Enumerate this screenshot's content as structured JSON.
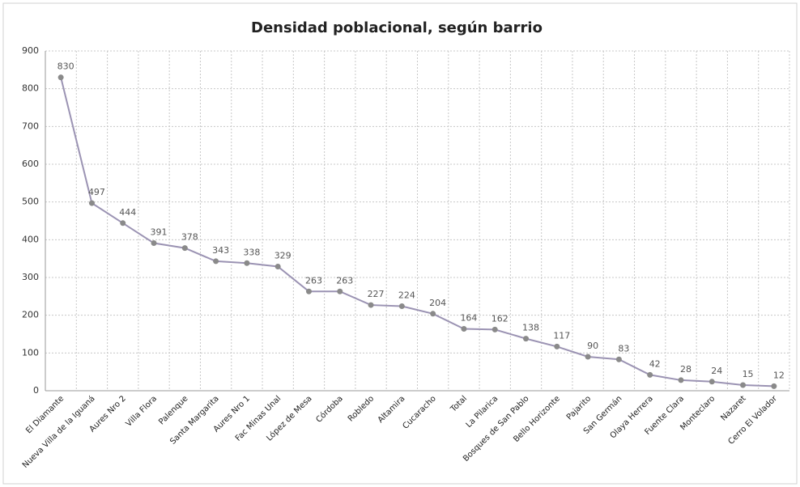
{
  "chart_data": {
    "type": "line",
    "title": "Densidad poblacional, según barrio",
    "categories": [
      "El Diamante",
      "Nueva Villa de la Iguaná",
      "Aures Nro 2",
      "Villa Flora",
      "Palenque",
      "Santa Margarita",
      "Aures Nro 1",
      "Fac Minas Unal",
      "López de Mesa",
      "Córdoba",
      "Robledo",
      "Altamira",
      "Cucaracho",
      "Total",
      "La Pilarica",
      "Bosques de San Pablo",
      "Bello Horizonte",
      "Pajarito",
      "San Germán",
      "Olaya Herrera",
      "Fuente Clara",
      "Monteclaro",
      "Nazaret",
      "Cerro El Volador"
    ],
    "values": [
      830,
      497,
      444,
      391,
      378,
      343,
      338,
      329,
      263,
      263,
      227,
      224,
      204,
      164,
      162,
      138,
      117,
      90,
      83,
      42,
      28,
      24,
      15,
      12
    ],
    "color": "#9b93b3",
    "marker_color": "#8a8a8a",
    "ylim": [
      0,
      900
    ],
    "yticks": [
      0,
      100,
      200,
      300,
      400,
      500,
      600,
      700,
      800,
      900
    ],
    "grid": true
  }
}
